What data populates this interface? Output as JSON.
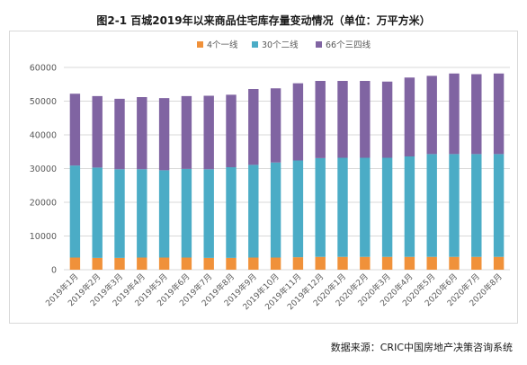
{
  "title": "图2-1  百城2019年以来商品住宅库存量变动情况（单位：万平方米）",
  "source": "数据来源：CRIC中国房地产决策咨询系统",
  "colors": {
    "tier1": "#F0913A",
    "tier2": "#4BACC6",
    "tier3": "#8064A2",
    "grid": "#d9d9d9",
    "axis_text": "#595959"
  },
  "chart_data": {
    "type": "bar",
    "stacked": true,
    "categories": [
      "2019年1月",
      "2019年2月",
      "2019年3月",
      "2019年4月",
      "2019年5月",
      "2019年6月",
      "2019年7月",
      "2019年8月",
      "2019年9月",
      "2019年10月",
      "2019年11月",
      "2019年12月",
      "2020年1月",
      "2020年2月",
      "2020年3月",
      "2020年4月",
      "2020年5月",
      "2020年6月",
      "2020年7月",
      "2020年8月"
    ],
    "series": [
      {
        "name": "4个一线",
        "color_key": "tier1",
        "values": [
          3600,
          3500,
          3500,
          3600,
          3600,
          3600,
          3500,
          3500,
          3600,
          3600,
          3700,
          3800,
          3800,
          3800,
          3800,
          3800,
          3800,
          3800,
          3800,
          3800
        ]
      },
      {
        "name": "30个二线",
        "color_key": "tier2",
        "values": [
          27300,
          26800,
          26300,
          26200,
          25900,
          26300,
          26300,
          26900,
          27500,
          28200,
          28700,
          29300,
          29400,
          29400,
          29400,
          29800,
          30500,
          30500,
          30500,
          30500
        ]
      },
      {
        "name": "66个三四线",
        "color_key": "tier3",
        "values": [
          21300,
          21200,
          20900,
          21400,
          21400,
          21600,
          21800,
          21500,
          22500,
          22000,
          22900,
          22900,
          22800,
          22800,
          22600,
          23400,
          23200,
          23900,
          23700,
          23900
        ]
      }
    ],
    "ylim": [
      0,
      60000
    ],
    "yticks": [
      0,
      10000,
      20000,
      30000,
      40000,
      50000,
      60000
    ],
    "grid": true,
    "legend_position": "top"
  }
}
